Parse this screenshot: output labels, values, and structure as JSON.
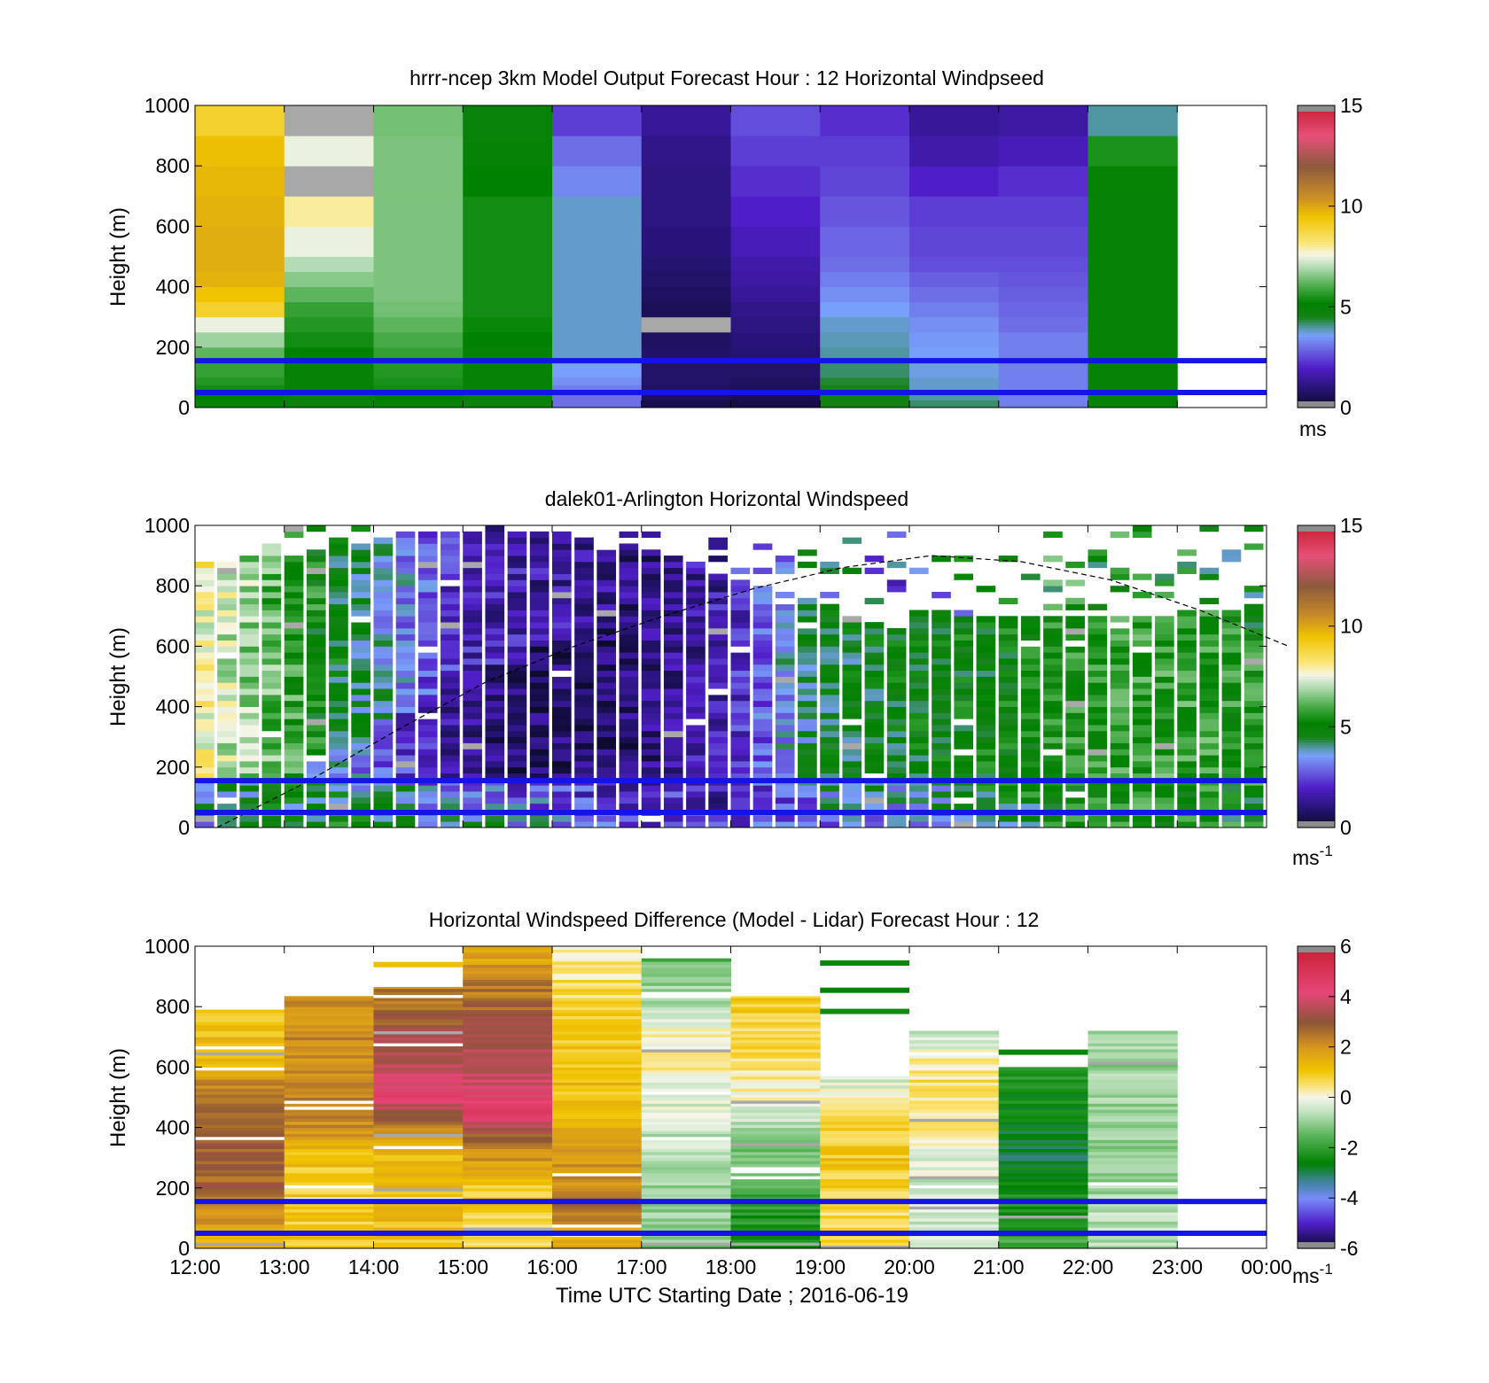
{
  "figure": {
    "xlabel": "Time UTC  Starting Date ; 2016-06-19",
    "xticks": [
      "12:00",
      "13:00",
      "14:00",
      "15:00",
      "16:00",
      "17:00",
      "18:00",
      "19:00",
      "20:00",
      "21:00",
      "22:00",
      "23:00",
      "00:00"
    ]
  },
  "chart_data": [
    {
      "type": "heatmap",
      "title": "hrrr-ncep 3km Model Output   Forecast Hour : 12 Horizontal Windpseed",
      "ylabel": "Height (m)",
      "yticks": [
        "0",
        "200",
        "400",
        "600",
        "800",
        "1000"
      ],
      "ylim": [
        0,
        1000
      ],
      "xlim": [
        "12:00",
        "00:00"
      ],
      "colorbar": {
        "ticks": [
          "0",
          "5",
          "10",
          "15"
        ],
        "range": [
          0,
          15
        ],
        "unit": "ms",
        "unit_sup": ""
      },
      "reference_lines_m": [
        50,
        155
      ],
      "line_color": "#1414e6",
      "height_levels_m": [
        0,
        25,
        50,
        75,
        100,
        150,
        200,
        250,
        300,
        350,
        400,
        450,
        500,
        600,
        700,
        800,
        900,
        1000
      ],
      "columns": [
        {
          "hour": "12:00",
          "speed_ms": [
            5.0,
            5.2,
            5.4,
            5.6,
            5.8,
            6.2,
            6.8,
            7.5,
            9.0,
            9.5,
            9.8,
            9.9,
            9.9,
            9.8,
            9.7,
            9.6,
            9.0
          ]
        },
        {
          "hour": "13:00",
          "speed_ms": [
            4.8,
            4.8,
            5.0,
            5.0,
            5.0,
            5.2,
            5.4,
            5.6,
            5.8,
            6.2,
            6.6,
            7.0,
            7.5,
            8.0,
            0,
            7.5,
            0
          ]
        },
        {
          "hour": "14:00",
          "speed_ms": [
            5.0,
            5.2,
            5.4,
            5.5,
            5.6,
            5.8,
            6.0,
            6.2,
            6.4,
            6.5,
            6.5,
            6.5,
            6.5,
            6.5,
            6.5,
            6.5,
            6.4
          ]
        },
        {
          "hour": "15:00",
          "speed_ms": [
            4.8,
            4.8,
            5.0,
            5.0,
            5.0,
            5.0,
            5.2,
            5.3,
            5.4,
            5.4,
            5.4,
            5.4,
            5.4,
            5.4,
            5.2,
            5.0,
            4.9
          ]
        },
        {
          "hour": "16:00",
          "speed_ms": [
            3.0,
            3.0,
            3.2,
            3.4,
            3.6,
            3.8,
            3.8,
            3.8,
            3.8,
            3.8,
            3.8,
            3.8,
            3.8,
            3.8,
            3.3,
            3.0,
            2.4
          ]
        },
        {
          "hour": "17:00",
          "speed_ms": [
            0.5,
            0.6,
            0.7,
            0.8,
            0.8,
            0.8,
            0.7,
            0,
            0.6,
            0.7,
            0.8,
            0.9,
            1.0,
            1.1,
            1.1,
            1.2,
            1.4
          ]
        },
        {
          "hour": "18:00",
          "speed_ms": [
            0.4,
            0.5,
            0.6,
            0.7,
            0.8,
            0.9,
            1.0,
            1.1,
            1.2,
            1.4,
            1.5,
            1.6,
            1.8,
            2.0,
            2.2,
            2.4,
            2.6
          ]
        },
        {
          "hour": "19:00",
          "speed_ms": [
            4.6,
            4.6,
            4.5,
            4.4,
            4.2,
            4.0,
            3.9,
            3.8,
            3.6,
            3.4,
            3.2,
            3.0,
            2.9,
            2.7,
            2.5,
            2.4,
            2.2
          ]
        },
        {
          "hour": "20:00",
          "speed_ms": [
            4.2,
            4.0,
            3.8,
            3.8,
            3.7,
            3.6,
            3.5,
            3.4,
            3.2,
            3.0,
            2.8,
            2.6,
            2.5,
            2.4,
            2.0,
            1.6,
            1.4
          ]
        },
        {
          "hour": "21:00",
          "speed_ms": [
            3.2,
            3.2,
            3.2,
            3.2,
            3.2,
            3.2,
            3.2,
            3.0,
            2.9,
            2.8,
            2.7,
            2.6,
            2.5,
            2.4,
            2.2,
            1.8,
            1.5
          ]
        },
        {
          "hour": "22:00",
          "speed_ms": [
            5.0,
            5.0,
            5.0,
            5.0,
            5.0,
            5.0,
            5.0,
            5.0,
            5.0,
            5.0,
            5.0,
            5.0,
            5.0,
            5.0,
            5.1,
            5.5,
            4.0
          ]
        }
      ]
    },
    {
      "type": "heatmap",
      "title": "dalek01-Arlington  Horizontal Windspeed",
      "ylabel": "Height (m)",
      "yticks": [
        "0",
        "200",
        "400",
        "600",
        "800",
        "1000"
      ],
      "ylim": [
        0,
        1000
      ],
      "xlim": [
        "12:00",
        "00:00"
      ],
      "colorbar": {
        "ticks": [
          "0",
          "5",
          "10",
          "15"
        ],
        "range": [
          0,
          15
        ],
        "unit": "ms",
        "unit_sup": "-1"
      },
      "reference_lines_m": [
        50,
        155
      ],
      "line_color": "#1414e6",
      "boundary_layer_curve": {
        "style": "dashed",
        "hours_after_12utc": [
          0,
          1,
          2,
          3,
          4,
          5,
          6,
          7,
          8,
          9,
          10,
          11,
          12
        ],
        "height_m": [
          0,
          150,
          320,
          480,
          600,
          700,
          790,
          860,
          900,
          880,
          820,
          720,
          600
        ]
      },
      "time_step_minutes": 15,
      "speed_profiles_ms": {
        "hours_after_12utc": [
          0,
          1,
          2,
          3,
          4,
          5,
          6,
          7,
          8,
          9,
          10,
          11,
          12
        ],
        "near_surface": [
          3.5,
          4.5,
          4.8,
          4.0,
          3.5,
          2.5,
          2.0,
          3.0,
          3.5,
          4.5,
          5.0,
          5.2,
          5.0
        ],
        "mid_level": [
          5.0,
          4.8,
          3.0,
          1.2,
          0.8,
          1.0,
          1.8,
          4.5,
          4.8,
          5.0,
          5.5,
          5.8,
          5.5
        ],
        "upper_level": [
          8.0,
          6.0,
          4.0,
          2.0,
          1.5,
          1.2,
          1.6,
          4.0,
          3.0,
          5.0,
          5.2,
          5.5,
          5.0
        ]
      }
    },
    {
      "type": "heatmap",
      "title": "Horizontal Windspeed Difference (Model - Lidar) Forecast Hour : 12",
      "ylabel": "Height (m)",
      "yticks": [
        "0",
        "200",
        "400",
        "600",
        "800",
        "1000"
      ],
      "ylim": [
        0,
        1000
      ],
      "xlim": [
        "12:00",
        "00:00"
      ],
      "colorbar": {
        "ticks": [
          "-6",
          "-4",
          "-2",
          "0",
          "2",
          "4",
          "6"
        ],
        "range": [
          -6,
          6
        ],
        "unit": "ms",
        "unit_sup": "-1"
      },
      "reference_lines_m": [
        50,
        155
      ],
      "line_color": "#1414e6",
      "columns": [
        {
          "hour": "12:00",
          "top_m": 790,
          "profile_m": [
            0,
            200,
            400,
            520,
            600,
            790
          ],
          "diff_ms": [
            1.2,
            2.8,
            2.9,
            2.5,
            1.5,
            1.0
          ]
        },
        {
          "hour": "13:00",
          "top_m": 835,
          "profile_m": [
            0,
            200,
            300,
            450,
            600,
            835
          ],
          "diff_ms": [
            1.0,
            0.9,
            1.2,
            2.5,
            2.2,
            2.0
          ]
        },
        {
          "hour": "14:00",
          "top_m": 865,
          "profile_m": [
            0,
            300,
            400,
            500,
            650,
            865
          ],
          "diff_ms": [
            1.1,
            1.3,
            2.2,
            4.2,
            3.5,
            2.4
          ]
        },
        {
          "hour": "15:00",
          "top_m": 1000,
          "profile_m": [
            0,
            200,
            350,
            450,
            600,
            800,
            1000
          ],
          "diff_ms": [
            0.6,
            1.0,
            2.5,
            4.5,
            3.6,
            2.8,
            1.6
          ]
        },
        {
          "hour": "16:00",
          "top_m": 1000,
          "profile_m": [
            0,
            150,
            250,
            400,
            600,
            800,
            1000
          ],
          "diff_ms": [
            1.4,
            2.5,
            2.0,
            1.3,
            1.1,
            0.8,
            0.2
          ]
        },
        {
          "hour": "17:00",
          "top_m": 960,
          "profile_m": [
            0,
            200,
            400,
            500,
            650,
            800,
            960
          ],
          "diff_ms": [
            -1.2,
            -0.8,
            -0.5,
            -0.2,
            0.4,
            -0.6,
            -1.5
          ]
        },
        {
          "hour": "18:00",
          "top_m": 835,
          "profile_m": [
            0,
            100,
            250,
            400,
            500,
            650,
            835
          ],
          "diff_ms": [
            -2.5,
            -2.2,
            -1.6,
            -0.8,
            0.0,
            0.6,
            1.0
          ]
        },
        {
          "hour": "19:00",
          "top_m": 570,
          "profile_m": [
            0,
            150,
            300,
            400,
            500,
            570
          ],
          "diff_ms": [
            0.8,
            0.6,
            1.0,
            0.9,
            0.2,
            -0.5
          ]
        },
        {
          "hour": "20:00",
          "top_m": 720,
          "profile_m": [
            0,
            200,
            400,
            550,
            720
          ],
          "diff_ms": [
            -0.3,
            -0.5,
            0.3,
            0.6,
            -0.4
          ]
        },
        {
          "hour": "21:00",
          "top_m": 600,
          "profile_m": [
            0,
            150,
            300,
            450,
            600
          ],
          "diff_ms": [
            -1.8,
            -2.4,
            -2.8,
            -2.6,
            -2.0
          ]
        },
        {
          "hour": "22:00",
          "top_m": 720,
          "profile_m": [
            0,
            200,
            400,
            600,
            720
          ],
          "diff_ms": [
            -0.6,
            -0.8,
            -1.0,
            -0.9,
            -0.7
          ]
        }
      ],
      "isolated_strips": [
        {
          "hour": "14:00",
          "height_m": 940,
          "diff_ms": 1.2
        },
        {
          "hour": "19:00",
          "height_m": 945,
          "diff_ms": -2.5
        },
        {
          "hour": "19:00",
          "height_m": 855,
          "diff_ms": -2.6
        },
        {
          "hour": "19:00",
          "height_m": 785,
          "diff_ms": -2.4
        },
        {
          "hour": "21:00",
          "height_m": 650,
          "diff_ms": -2.5
        }
      ]
    }
  ]
}
